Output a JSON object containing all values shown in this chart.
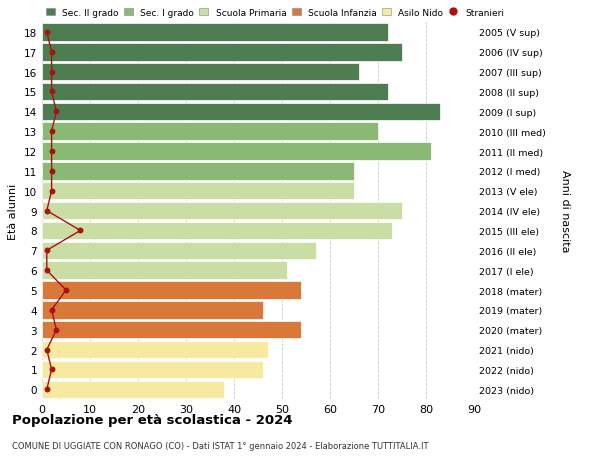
{
  "ages": [
    0,
    1,
    2,
    3,
    4,
    5,
    6,
    7,
    8,
    9,
    10,
    11,
    12,
    13,
    14,
    15,
    16,
    17,
    18
  ],
  "right_labels": [
    "2023 (nido)",
    "2022 (nido)",
    "2021 (nido)",
    "2020 (mater)",
    "2019 (mater)",
    "2018 (mater)",
    "2017 (I ele)",
    "2016 (II ele)",
    "2015 (III ele)",
    "2014 (IV ele)",
    "2013 (V ele)",
    "2012 (I med)",
    "2011 (II med)",
    "2010 (III med)",
    "2009 (I sup)",
    "2008 (II sup)",
    "2007 (III sup)",
    "2006 (IV sup)",
    "2005 (V sup)"
  ],
  "bar_values": [
    38,
    46,
    47,
    54,
    46,
    54,
    51,
    57,
    73,
    75,
    65,
    65,
    81,
    70,
    83,
    72,
    66,
    75,
    72
  ],
  "stranieri": [
    1,
    2,
    1,
    3,
    2,
    5,
    1,
    1,
    8,
    1,
    2,
    2,
    2,
    2,
    3,
    2,
    2,
    2,
    1
  ],
  "bar_colors": [
    "#f7e9a0",
    "#f7e9a0",
    "#f7e9a0",
    "#d8793a",
    "#d8793a",
    "#d8793a",
    "#c9dda5",
    "#c9dda5",
    "#c9dda5",
    "#c9dda5",
    "#c9dda5",
    "#8ab975",
    "#8ab975",
    "#8ab975",
    "#4d7d50",
    "#4d7d50",
    "#4d7d50",
    "#4d7d50",
    "#4d7d50"
  ],
  "legend_labels": [
    "Sec. II grado",
    "Sec. I grado",
    "Scuola Primaria",
    "Scuola Infanzia",
    "Asilo Nido",
    "Stranieri"
  ],
  "legend_colors": [
    "#4d7d50",
    "#8ab975",
    "#c9dda5",
    "#d8793a",
    "#f7e9a0",
    "#aa1111"
  ],
  "ylabel_left": "Età alunni",
  "ylabel_right": "Anni di nascita",
  "title": "Popolazione per età scolastica - 2024",
  "subtitle": "COMUNE DI UGGIATE CON RONAGO (CO) - Dati ISTAT 1° gennaio 2024 - Elaborazione TUTTITALIA.IT",
  "xlim": [
    0,
    90
  ],
  "xticks": [
    0,
    10,
    20,
    30,
    40,
    50,
    60,
    70,
    80,
    90
  ],
  "background_color": "#ffffff",
  "bar_edge_color": "#ffffff",
  "grid_color": "#cccccc"
}
